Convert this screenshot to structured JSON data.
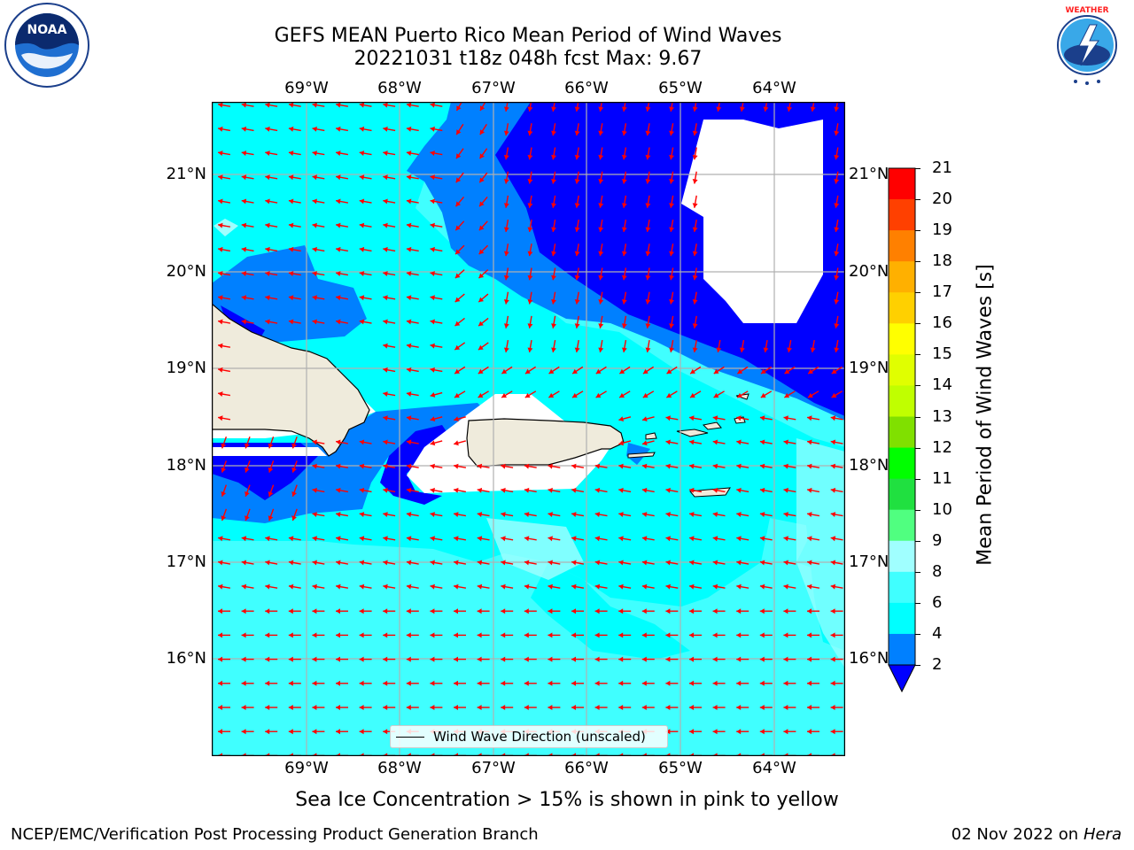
{
  "header": {
    "title_line1": "GEFS MEAN Puerto Rico Mean Period of Wind Waves",
    "title_line2": "20221031 t18z 048h fcst   Max: 9.67"
  },
  "logos": {
    "left": "NOAA",
    "left_ring": "NATIONAL OCEANIC AND ATMOSPHERIC ADMINISTRATION · U.S. DEPARTMENT OF COMMERCE",
    "right_ring": "NATIONAL WEATHER SERVICE"
  },
  "map": {
    "lon_labels": [
      "69°W",
      "68°W",
      "67°W",
      "66°W",
      "65°W",
      "64°W"
    ],
    "lat_labels": [
      "21°N",
      "20°N",
      "19°N",
      "18°N",
      "17°N",
      "16°N"
    ],
    "legend_label": "Wind Wave Direction (unscaled)",
    "colors": {
      "land": "#efebdc",
      "arrow": "#ff0000",
      "grid": "#b0b0b0"
    }
  },
  "colorbar": {
    "label": "Mean Period of Wind Waves [s]",
    "ticks": [
      "2",
      "4",
      "6",
      "8",
      "9",
      "10",
      "11",
      "12",
      "13",
      "14",
      "15",
      "16",
      "17",
      "18",
      "19",
      "20",
      "21"
    ],
    "colors": [
      "#0000ff",
      "#0080ff",
      "#00ffff",
      "#40ffff",
      "#a0ffff",
      "#50ff80",
      "#20e040",
      "#00ff00",
      "#80e000",
      "#c0ff00",
      "#e0ff00",
      "#ffff00",
      "#ffd000",
      "#ffb000",
      "#ff8000",
      "#ff4000",
      "#ff0000"
    ]
  },
  "notes": {
    "sea_ice": "Sea Ice Concentration > 15% is shown in pink to yellow"
  },
  "footer": {
    "left": "NCEP/EMC/Verification Post Processing Product Generation Branch",
    "right_date": "02 Nov 2022 on",
    "right_host": "Hera"
  }
}
